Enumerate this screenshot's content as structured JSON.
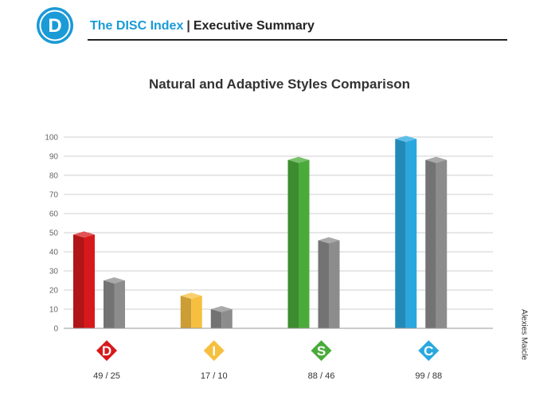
{
  "header": {
    "logo_letter": "D",
    "brand": "The DISC Index",
    "separator": "|",
    "section": "Executive Summary"
  },
  "side_name": "Alexies Maicle",
  "colors": {
    "brand_blue": "#1a9ad6",
    "adaptive_gray": "#8c8c8c"
  },
  "chart_data": {
    "type": "bar",
    "title": "Natural and Adaptive Styles Comparison",
    "categories": [
      "D",
      "I",
      "S",
      "C"
    ],
    "series": [
      {
        "values": [
          49,
          17,
          88,
          99
        ]
      },
      {
        "values": [
          25,
          10,
          46,
          88
        ]
      }
    ],
    "value_labels": [
      "49 / 25",
      "17 / 10",
      "88 / 46",
      "99 / 88"
    ],
    "category_colors": [
      "#d7191c",
      "#f7bf3f",
      "#4aab3a",
      "#29a8e0"
    ],
    "ylim": [
      0,
      100
    ],
    "yticks": [
      0,
      10,
      20,
      30,
      40,
      50,
      60,
      70,
      80,
      90,
      100
    ],
    "grid": true
  }
}
